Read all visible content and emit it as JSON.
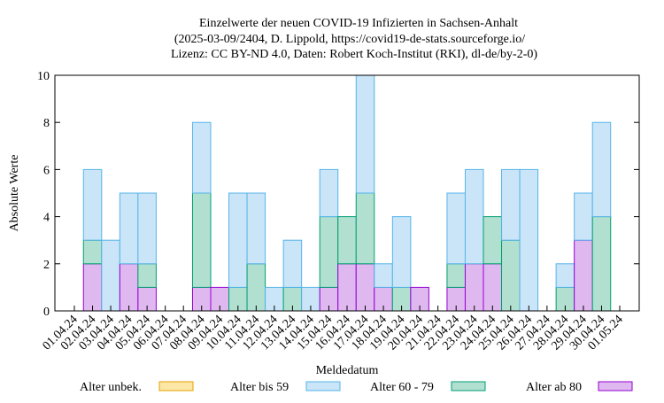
{
  "chart_data": {
    "type": "stacked_bar",
    "title": [
      "Einzelwerte der neuen COVID-19 Infizierten in Sachsen-Anhalt",
      "(2025-03-09/2404, D. Lippold, https://covid19-de-stats.sourceforge.io/",
      "Lizenz: CC BY-ND 4.0, Daten: Robert Koch-Institut (RKI), dl-de/by-2-0)"
    ],
    "x_label": "Meldedatum",
    "y_label": "Absolute Werte",
    "categories": [
      "01.04.24",
      "02.04.24",
      "03.04.24",
      "04.04.24",
      "05.04.24",
      "06.04.24",
      "07.04.24",
      "08.04.24",
      "09.04.24",
      "10.04.24",
      "11.04.24",
      "12.04.24",
      "13.04.24",
      "14.04.24",
      "15.04.24",
      "16.04.24",
      "17.04.24",
      "18.04.24",
      "19.04.24",
      "20.04.24",
      "21.04.24",
      "22.04.24",
      "23.04.24",
      "24.04.24",
      "25.04.24",
      "26.04.24",
      "27.04.24",
      "28.04.24",
      "29.04.24",
      "30.04.24",
      "01.05.24"
    ],
    "series": [
      {
        "name": "Alter unbek.",
        "color": "#fde7a6",
        "stroke": "#e6a000",
        "values": [
          0,
          0,
          0,
          0,
          0,
          0,
          0,
          0,
          0,
          0,
          0,
          0,
          0,
          0,
          0,
          0,
          0,
          0,
          0,
          0,
          0,
          0,
          0,
          0,
          0,
          0,
          0,
          0,
          0,
          0,
          0
        ]
      },
      {
        "name": "Alter bis 59",
        "color": "#c9e5f7",
        "stroke": "#56b4e9",
        "values": [
          0,
          3,
          3,
          3,
          3,
          0,
          0,
          3,
          0,
          4,
          3,
          1,
          2,
          1,
          2,
          0,
          5,
          1,
          3,
          0,
          0,
          3,
          4,
          0,
          3,
          6,
          0,
          1,
          2,
          4,
          0
        ]
      },
      {
        "name": "Alter 60 - 79",
        "color": "#b2e0d0",
        "stroke": "#009e73",
        "values": [
          0,
          1,
          0,
          0,
          1,
          0,
          0,
          4,
          0,
          1,
          2,
          0,
          1,
          0,
          3,
          2,
          3,
          0,
          1,
          0,
          0,
          1,
          0,
          2,
          3,
          0,
          0,
          1,
          0,
          4,
          0
        ]
      },
      {
        "name": "Alter ab 80",
        "color": "#e0b8f0",
        "stroke": "#9400d3",
        "values": [
          0,
          2,
          0,
          2,
          1,
          0,
          0,
          1,
          1,
          0,
          0,
          0,
          0,
          0,
          1,
          2,
          2,
          1,
          0,
          1,
          0,
          1,
          2,
          2,
          0,
          0,
          0,
          0,
          3,
          0,
          0
        ]
      }
    ],
    "stack_order": [
      "Alter ab 80",
      "Alter 60 - 79",
      "Alter bis 59",
      "Alter unbek."
    ],
    "ylim": [
      0,
      10
    ],
    "yticks": [
      0,
      2,
      4,
      6,
      8,
      10
    ]
  }
}
